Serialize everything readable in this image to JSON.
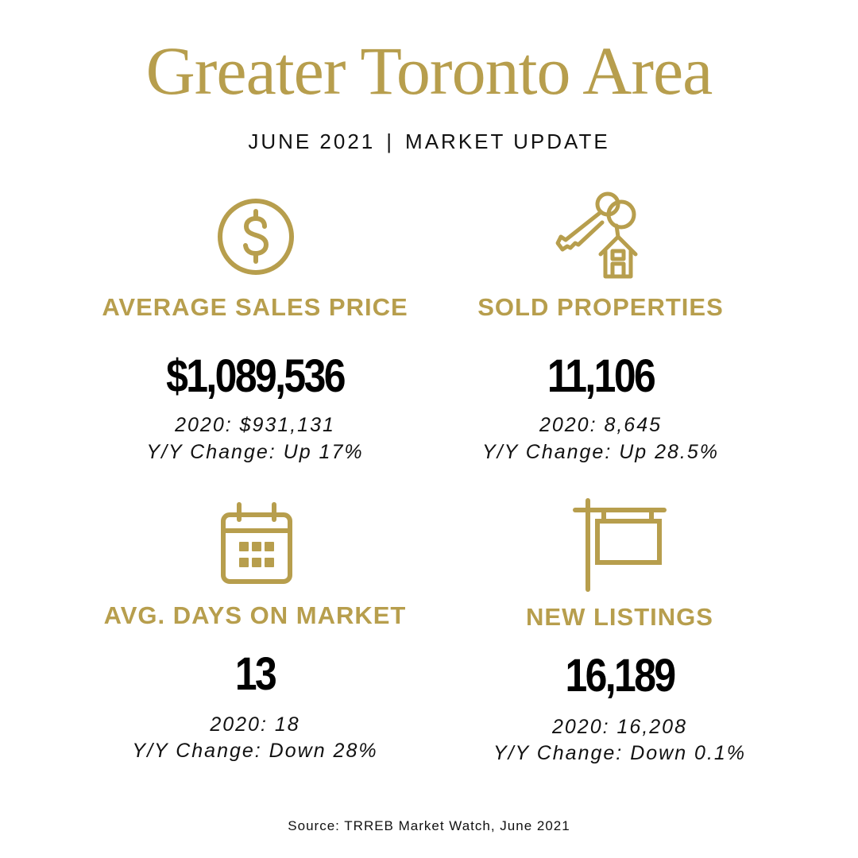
{
  "header": {
    "title": "Greater Toronto Area",
    "period": "JUNE 2021",
    "separator": "|",
    "subtitle": "MARKET UPDATE"
  },
  "colors": {
    "accent": "#b79e4d",
    "text": "#000000"
  },
  "stats": [
    {
      "icon": "dollar-circle-icon",
      "label": "AVERAGE SALES PRICE",
      "value": "$1,089,536",
      "prior": "2020: $931,131",
      "change": "Y/Y Change: Up 17%"
    },
    {
      "icon": "keys-house-icon",
      "label": "SOLD PROPERTIES",
      "value": "11,106",
      "prior": "2020: 8,645",
      "change": "Y/Y Change: Up 28.5%"
    },
    {
      "icon": "calendar-icon",
      "label": "AVG. DAYS ON MARKET",
      "value": "13",
      "prior": "2020: 18",
      "change": "Y/Y Change: Down 28%"
    },
    {
      "icon": "sign-post-icon",
      "label": "NEW LISTINGS",
      "value": "16,189",
      "prior": "2020: 16,208",
      "change": "Y/Y Change: Down 0.1%"
    }
  ],
  "footer": {
    "source": "Source: TRREB Market Watch, June 2021"
  }
}
